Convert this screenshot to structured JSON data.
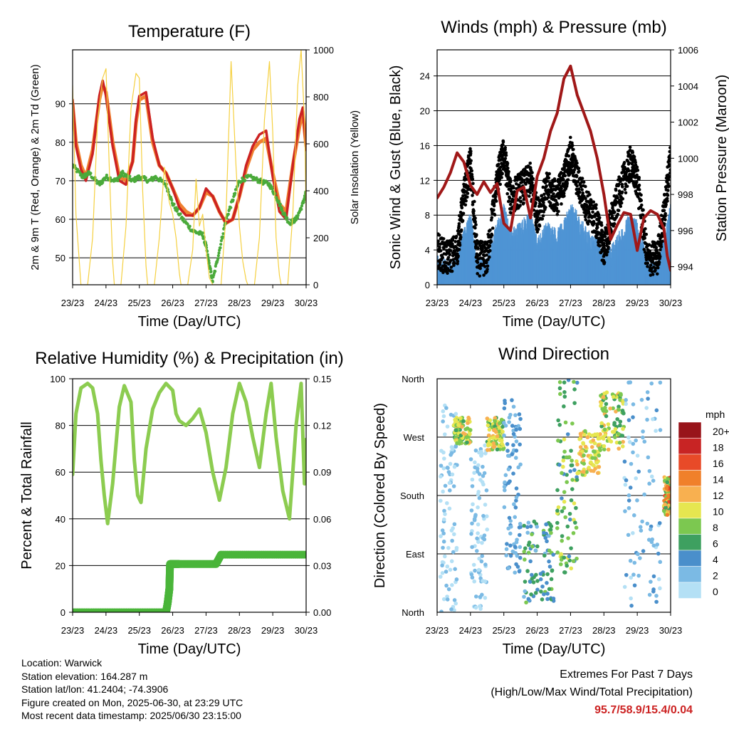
{
  "panels": {
    "temperature": {
      "title": "Temperature (F)",
      "ylabel_left": "2m & 9m T (Red, Orange) & 2m Td (Green)",
      "ylabel_right": "Solar Insolation (Yellow)",
      "xlabel": "Time (Day/UTC)"
    },
    "winds": {
      "title": "Winds (mph) & Pressure (mb)",
      "ylabel_left": "Sonic Wind & Gust (Blue, Black)",
      "ylabel_right": "Station Pressure (Maroon)",
      "xlabel": "Time (Day/UTC)"
    },
    "humidity": {
      "title": "Relative Humidity (%) & Precipitation (in)",
      "ylabel_left": "Percent & Total Rainfall",
      "xlabel": "Time (Day/UTC)"
    },
    "direction": {
      "title": "Wind Direction",
      "ylabel_left": "Direction (Colored By Speed)",
      "xlabel": "Time (Day/UTC)",
      "legend_title": "mph"
    }
  },
  "info": {
    "location": "Location: Warwick",
    "elevation": "Station elevation: 164.287 m",
    "latlon": "Station lat/lon: 41.2404; -74.3906",
    "created": "Figure created on Mon, 2025-06-30, at 23:29 UTC",
    "recent": "Most recent data timestamp: 2025/06/30 23:15:00",
    "extremes_title": "Extremes For Past 7 Days",
    "extremes_sub": "(High/Low/Max Wind/Total Precipitation)",
    "extremes_values": "95.7/58.9/15.4/0.04"
  },
  "colors": {
    "temp2m": "#cc2222",
    "temp9m": "#f08030",
    "dewpoint": "#4aaa3a",
    "solar": "#f5d040",
    "wind": "#4f94d4",
    "gust": "#000000",
    "pressure": "#a01818",
    "rh": "#8ccc50",
    "precip": "#4ab53a",
    "extremes": "#cc2222"
  },
  "chart_data": [
    {
      "id": "temperature",
      "type": "line",
      "x_unit": "days since 23/23 UTC",
      "xticks": [
        "23/23",
        "24/23",
        "25/23",
        "26/23",
        "27/23",
        "28/23",
        "29/23",
        "30/23"
      ],
      "xlim": [
        0,
        7
      ],
      "ylim": [
        43,
        104
      ],
      "yticks": [
        50,
        60,
        70,
        80,
        90
      ],
      "y2lim": [
        0,
        1000
      ],
      "y2ticks": [
        0,
        200,
        400,
        600,
        800,
        1000
      ],
      "series": [
        {
          "key": "temp9m",
          "axis": "left",
          "x": [
            0,
            0.1,
            0.25,
            0.4,
            0.6,
            0.8,
            0.9,
            1.0,
            1.2,
            1.4,
            1.6,
            1.8,
            1.9,
            2.0,
            2.2,
            2.4,
            2.6,
            2.8,
            3.0,
            3.2,
            3.4,
            3.6,
            3.8,
            4.0,
            4.2,
            4.4,
            4.6,
            4.8,
            5.0,
            5.2,
            5.4,
            5.6,
            5.8,
            6.0,
            6.2,
            6.4,
            6.6,
            6.8,
            6.9,
            7.0
          ],
          "y": [
            90,
            80,
            74,
            71,
            78,
            91,
            95,
            93,
            80,
            71,
            70,
            75,
            85,
            91,
            92,
            80,
            74,
            72,
            68,
            64,
            62,
            61,
            63,
            67,
            66,
            62,
            59,
            60,
            66,
            73,
            78,
            80,
            81,
            72,
            64,
            62,
            74,
            84,
            88,
            79
          ]
        },
        {
          "key": "temp2m",
          "axis": "left",
          "x": [
            0,
            0.1,
            0.25,
            0.4,
            0.6,
            0.8,
            0.9,
            1.0,
            1.2,
            1.4,
            1.6,
            1.8,
            1.9,
            2.0,
            2.2,
            2.4,
            2.6,
            2.8,
            3.0,
            3.2,
            3.4,
            3.6,
            3.8,
            4.0,
            4.2,
            4.4,
            4.6,
            4.8,
            5.0,
            5.2,
            5.4,
            5.6,
            5.8,
            6.0,
            6.2,
            6.4,
            6.6,
            6.8,
            6.9,
            7.0
          ],
          "y": [
            91,
            79,
            73,
            70,
            77,
            92,
            96,
            92,
            79,
            70,
            69,
            75,
            86,
            92,
            93,
            81,
            74,
            72,
            68,
            63,
            61,
            61,
            63,
            68,
            66,
            62,
            59,
            60,
            66,
            74,
            79,
            82,
            83,
            71,
            62,
            60,
            74,
            86,
            89,
            78
          ]
        },
        {
          "key": "dewpoint",
          "axis": "left",
          "x": [
            0,
            0.3,
            0.5,
            0.8,
            1.0,
            1.3,
            1.5,
            1.8,
            2.0,
            2.3,
            2.5,
            2.8,
            3.0,
            3.3,
            3.6,
            3.9,
            4.0,
            4.1,
            4.2,
            4.4,
            4.6,
            4.8,
            5.0,
            5.3,
            5.6,
            5.9,
            6.1,
            6.3,
            6.5,
            6.7,
            6.9,
            7.0
          ],
          "y": [
            74,
            71,
            72,
            69,
            71,
            70,
            72,
            70,
            71,
            70,
            71,
            69,
            64,
            60,
            57,
            56,
            53,
            48,
            44,
            52,
            60,
            65,
            70,
            71,
            70,
            69,
            66,
            62,
            59,
            60,
            64,
            67
          ]
        },
        {
          "key": "solar",
          "axis": "right",
          "x": [
            0,
            0.1,
            0.25,
            0.45,
            0.6,
            0.75,
            0.9,
            1.0,
            1.1,
            1.2,
            1.25,
            1.45,
            1.6,
            1.75,
            1.9,
            2.0,
            2.1,
            2.2,
            2.25,
            2.45,
            2.6,
            2.75,
            2.9,
            3.0,
            3.1,
            3.2,
            3.25,
            3.45,
            3.6,
            3.7,
            3.8,
            3.9,
            4.0,
            4.1,
            4.2,
            4.25,
            4.45,
            4.6,
            4.75,
            4.9,
            5.0,
            5.1,
            5.2,
            5.25,
            5.45,
            5.6,
            5.75,
            5.9,
            6.0,
            6.1,
            6.2,
            6.25,
            6.45,
            6.6,
            6.75,
            6.85,
            6.95,
            7.0
          ],
          "y": [
            850,
            300,
            0,
            0,
            200,
            700,
            880,
            920,
            500,
            100,
            0,
            0,
            250,
            750,
            900,
            880,
            400,
            80,
            0,
            0,
            200,
            500,
            350,
            300,
            200,
            50,
            0,
            0,
            150,
            450,
            250,
            300,
            150,
            30,
            0,
            0,
            0,
            300,
            950,
            500,
            250,
            100,
            20,
            0,
            0,
            200,
            700,
            950,
            650,
            200,
            40,
            0,
            0,
            300,
            850,
            1000,
            700,
            300
          ]
        }
      ]
    },
    {
      "id": "winds",
      "type": "line",
      "xticks": [
        "23/23",
        "24/23",
        "25/23",
        "26/23",
        "27/23",
        "28/23",
        "29/23",
        "30/23"
      ],
      "xlim": [
        0,
        7
      ],
      "ylim": [
        0,
        27
      ],
      "yticks": [
        0,
        4,
        8,
        12,
        16,
        20,
        24
      ],
      "y2lim": [
        993,
        1006
      ],
      "y2ticks": [
        994,
        996,
        998,
        1000,
        1002,
        1004,
        1006
      ],
      "series": [
        {
          "key": "wind",
          "axis": "left",
          "x": [
            0,
            0.3,
            0.6,
            0.8,
            1.0,
            1.2,
            1.5,
            1.8,
            2.0,
            2.2,
            2.5,
            2.8,
            3.0,
            3.3,
            3.6,
            3.8,
            4.0,
            4.2,
            4.5,
            4.8,
            5.0,
            5.2,
            5.5,
            5.8,
            6.0,
            6.3,
            6.6,
            6.8,
            7.0
          ],
          "y": [
            2,
            1.5,
            2,
            5,
            7,
            2,
            2,
            6,
            8,
            5,
            6,
            7,
            4,
            6,
            5,
            6,
            8,
            7,
            5,
            4,
            2,
            3,
            5,
            7,
            6,
            2,
            1.5,
            4,
            8
          ]
        },
        {
          "key": "gust",
          "axis": "left",
          "x": [
            0,
            0.3,
            0.6,
            0.8,
            1.0,
            1.2,
            1.5,
            1.8,
            2.0,
            2.2,
            2.5,
            2.8,
            3.0,
            3.3,
            3.6,
            3.8,
            4.0,
            4.2,
            4.5,
            4.8,
            5.0,
            5.2,
            5.5,
            5.8,
            6.0,
            6.3,
            6.6,
            6.8,
            7.0
          ],
          "y": [
            4,
            3,
            4,
            10,
            14,
            3,
            3,
            12,
            15,
            10,
            11,
            12,
            8,
            11,
            10,
            12,
            15,
            12,
            9,
            7,
            4,
            7,
            11,
            14,
            12,
            3,
            3,
            8,
            15
          ]
        },
        {
          "key": "pressure",
          "axis": "right",
          "x": [
            0,
            0.2,
            0.4,
            0.6,
            0.8,
            1.0,
            1.2,
            1.4,
            1.6,
            1.8,
            2.0,
            2.2,
            2.4,
            2.6,
            2.8,
            3.0,
            3.2,
            3.4,
            3.6,
            3.8,
            4.0,
            4.2,
            4.4,
            4.6,
            4.8,
            5.0,
            5.2,
            5.4,
            5.6,
            5.8,
            6.0,
            6.2,
            6.4,
            6.6,
            6.8,
            6.9,
            7.0
          ],
          "y": [
            997.8,
            998.4,
            999.2,
            1000.3,
            999.8,
            998.5,
            998.0,
            998.7,
            998.1,
            998.6,
            996.4,
            996.0,
            998.2,
            998.4,
            996.7,
            999.0,
            1000.0,
            1001.5,
            1002.5,
            1004.4,
            1005.1,
            1003.5,
            1002.5,
            1001.5,
            1000.0,
            998.0,
            995.5,
            996.3,
            997.0,
            996.9,
            994.9,
            996.7,
            997.1,
            996.9,
            996.1,
            994.6,
            993.8
          ]
        }
      ]
    },
    {
      "id": "humidity",
      "type": "line",
      "xticks": [
        "23/23",
        "24/23",
        "25/23",
        "26/23",
        "27/23",
        "28/23",
        "29/23",
        "30/23"
      ],
      "xlim": [
        0,
        7
      ],
      "ylim": [
        0,
        100
      ],
      "yticks": [
        0,
        20,
        40,
        60,
        80,
        100
      ],
      "y2lim": [
        0,
        0.15
      ],
      "y2ticks": [
        "0.00",
        "0.03",
        "0.06",
        "0.09",
        "0.12",
        "0.15"
      ],
      "series": [
        {
          "key": "rh",
          "axis": "left",
          "x": [
            0,
            0.1,
            0.25,
            0.45,
            0.6,
            0.75,
            0.85,
            0.95,
            1.05,
            1.2,
            1.4,
            1.55,
            1.75,
            1.85,
            1.95,
            2.05,
            2.2,
            2.4,
            2.6,
            2.8,
            3.0,
            3.1,
            3.2,
            3.4,
            3.6,
            3.8,
            4.0,
            4.2,
            4.4,
            4.6,
            4.8,
            5.0,
            5.2,
            5.4,
            5.6,
            5.8,
            5.95,
            6.1,
            6.3,
            6.5,
            6.7,
            6.85,
            6.95,
            7.0
          ],
          "y": [
            59,
            85,
            96,
            98,
            96,
            85,
            65,
            50,
            38,
            55,
            88,
            97,
            90,
            65,
            50,
            47,
            70,
            87,
            94,
            98,
            95,
            85,
            82,
            80,
            83,
            87,
            77,
            60,
            48,
            62,
            85,
            98,
            90,
            75,
            62,
            85,
            98,
            75,
            52,
            40,
            80,
            98,
            55,
            74
          ]
        },
        {
          "key": "precip",
          "axis": "right",
          "x": [
            0,
            2.8,
            2.85,
            2.9,
            2.92,
            3.2,
            4.3,
            4.45,
            7.0
          ],
          "y": [
            0,
            0,
            0.006,
            0.015,
            0.031,
            0.031,
            0.031,
            0.037,
            0.037
          ]
        }
      ]
    },
    {
      "id": "direction",
      "type": "scatter",
      "xticks": [
        "23/23",
        "24/23",
        "25/23",
        "26/23",
        "27/23",
        "28/23",
        "29/23",
        "30/23"
      ],
      "xlim": [
        0,
        7
      ],
      "ylim": [
        0,
        360
      ],
      "yticks": [
        "North",
        "East",
        "South",
        "West",
        "North"
      ],
      "colorbar": {
        "labels": [
          "0",
          "2",
          "4",
          "6",
          "8",
          "10",
          "12",
          "14",
          "16",
          "18",
          "20+"
        ],
        "colors": [
          "#b4e0f5",
          "#7bbae4",
          "#4a8fcb",
          "#3ea060",
          "#7cc850",
          "#e6e650",
          "#f8b050",
          "#f0802a",
          "#e84a28",
          "#c82424",
          "#98141a"
        ]
      },
      "clusters": [
        {
          "x": [
            0.1,
            0.6
          ],
          "y": [
            0,
            320
          ],
          "speed": [
            0,
            2
          ]
        },
        {
          "x": [
            0.5,
            1.0
          ],
          "y": [
            260,
            300
          ],
          "speed": [
            6,
            12
          ]
        },
        {
          "x": [
            1.0,
            1.5
          ],
          "y": [
            0,
            260
          ],
          "speed": [
            0,
            2
          ]
        },
        {
          "x": [
            1.5,
            2.0
          ],
          "y": [
            250,
            300
          ],
          "speed": [
            6,
            12
          ]
        },
        {
          "x": [
            2.0,
            2.5
          ],
          "y": [
            60,
            330
          ],
          "speed": [
            2,
            4
          ]
        },
        {
          "x": [
            2.6,
            3.5
          ],
          "y": [
            15,
            140
          ],
          "speed": [
            2,
            8
          ]
        },
        {
          "x": [
            3.6,
            4.2
          ],
          "y": [
            60,
            360
          ],
          "speed": [
            4,
            10
          ]
        },
        {
          "x": [
            4.2,
            4.9
          ],
          "y": [
            210,
            280
          ],
          "speed": [
            8,
            12
          ]
        },
        {
          "x": [
            4.9,
            5.6
          ],
          "y": [
            250,
            340
          ],
          "speed": [
            6,
            12
          ]
        },
        {
          "x": [
            5.6,
            6.7
          ],
          "y": [
            0,
            360
          ],
          "speed": [
            0,
            4
          ]
        },
        {
          "x": [
            6.8,
            7.0
          ],
          "y": [
            150,
            210
          ],
          "speed": [
            6,
            16
          ]
        }
      ]
    }
  ]
}
